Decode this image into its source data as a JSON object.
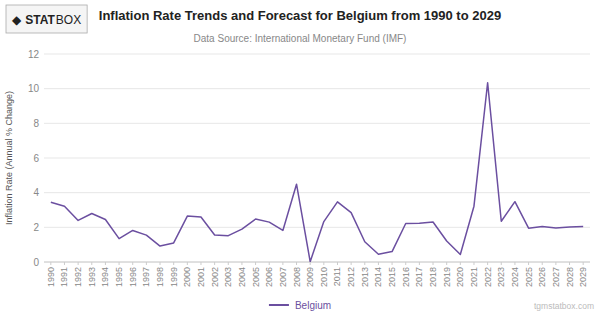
{
  "chart_data": {
    "type": "line",
    "title": "Inflation Rate Trends and Forecast for Belgium from 1990 to 2029",
    "subtitle": "Data Source: International Monetary Fund (IMF)",
    "y_label": "Inflation Rate (Annual % Change)",
    "x": [
      1990,
      1991,
      1992,
      1993,
      1994,
      1995,
      1996,
      1997,
      1998,
      1999,
      2000,
      2001,
      2002,
      2003,
      2004,
      2005,
      2006,
      2007,
      2008,
      2009,
      2010,
      2011,
      2012,
      2013,
      2014,
      2015,
      2016,
      2017,
      2018,
      2019,
      2020,
      2021,
      2022,
      2023,
      2024,
      2025,
      2026,
      2027,
      2028,
      2029
    ],
    "series": [
      {
        "name": "Belgium",
        "color": "#6b4fa0",
        "values": [
          3.45,
          3.22,
          2.4,
          2.8,
          2.45,
          1.35,
          1.82,
          1.55,
          0.92,
          1.1,
          2.65,
          2.6,
          1.56,
          1.52,
          1.9,
          2.48,
          2.3,
          1.82,
          4.49,
          0.02,
          2.33,
          3.47,
          2.85,
          1.17,
          0.45,
          0.6,
          2.22,
          2.23,
          2.31,
          1.21,
          0.43,
          3.22,
          10.34,
          2.35,
          3.48,
          1.95,
          2.05,
          1.96,
          2.02,
          2.05
        ]
      }
    ],
    "xlim": [
      1989.5,
      2029.5
    ],
    "xticks": [
      1990,
      1991,
      1992,
      1993,
      1994,
      1995,
      1996,
      1997,
      1998,
      1999,
      2000,
      2001,
      2002,
      2003,
      2004,
      2005,
      2006,
      2007,
      2008,
      2009,
      2010,
      2011,
      2012,
      2013,
      2014,
      2015,
      2016,
      2017,
      2018,
      2019,
      2020,
      2021,
      2022,
      2023,
      2024,
      2025,
      2026,
      2027,
      2028,
      2029
    ],
    "ylim": [
      0,
      12
    ],
    "yticks": [
      0,
      2,
      4,
      6,
      8,
      10,
      12
    ],
    "grid": true,
    "legend": "bottom",
    "annotations": [
      "tgmstatbox.com",
      "◆",
      "STAT",
      "BOX"
    ]
  }
}
